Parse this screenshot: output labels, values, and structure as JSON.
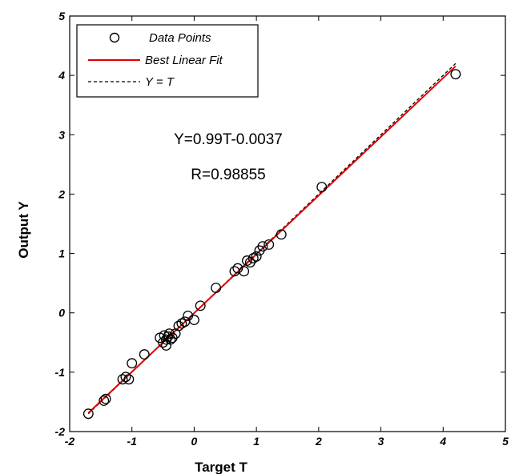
{
  "chart_data": {
    "type": "scatter",
    "xlabel": "Target  T",
    "ylabel": "Output Y",
    "xlim": [
      -2,
      5
    ],
    "ylim": [
      -2,
      5
    ],
    "xticks": [
      "-2",
      "-1",
      "0",
      "1",
      "2",
      "3",
      "4",
      "5"
    ],
    "yticks": [
      "-2",
      "-1",
      "0",
      "1",
      "2",
      "3",
      "4",
      "5"
    ],
    "grid": false,
    "legend": {
      "placement": "top-left",
      "entries": [
        "Data Points",
        "Best Linear Fit",
        "Y = T"
      ]
    },
    "annotations": [
      "Y=0.99T-0.0037",
      "R=0.98855"
    ],
    "colors": {
      "fit": "#e00000",
      "identity": "#000000",
      "points": "#000000"
    },
    "fit": {
      "slope": 0.99,
      "intercept": -0.0037
    },
    "series": [
      {
        "name": "Data Points",
        "x": [
          -1.7,
          -1.45,
          -1.42,
          -1.15,
          -1.1,
          -1.05,
          -1.0,
          -0.8,
          -0.55,
          -0.5,
          -0.48,
          -0.45,
          -0.45,
          -0.42,
          -0.4,
          -0.38,
          -0.35,
          -0.3,
          -0.25,
          -0.2,
          -0.15,
          -0.1,
          0.0,
          0.1,
          0.35,
          0.65,
          0.7,
          0.8,
          0.85,
          0.9,
          0.95,
          1.0,
          1.05,
          1.1,
          1.2,
          1.4,
          2.05,
          4.2
        ],
        "y": [
          -1.7,
          -1.48,
          -1.45,
          -1.12,
          -1.08,
          -1.12,
          -0.85,
          -0.7,
          -0.42,
          -0.5,
          -0.38,
          -0.45,
          -0.55,
          -0.4,
          -0.35,
          -0.45,
          -0.42,
          -0.35,
          -0.22,
          -0.18,
          -0.15,
          -0.05,
          -0.12,
          0.12,
          0.42,
          0.7,
          0.75,
          0.7,
          0.88,
          0.85,
          0.92,
          0.95,
          1.05,
          1.12,
          1.15,
          1.32,
          2.12,
          4.02
        ]
      }
    ]
  }
}
